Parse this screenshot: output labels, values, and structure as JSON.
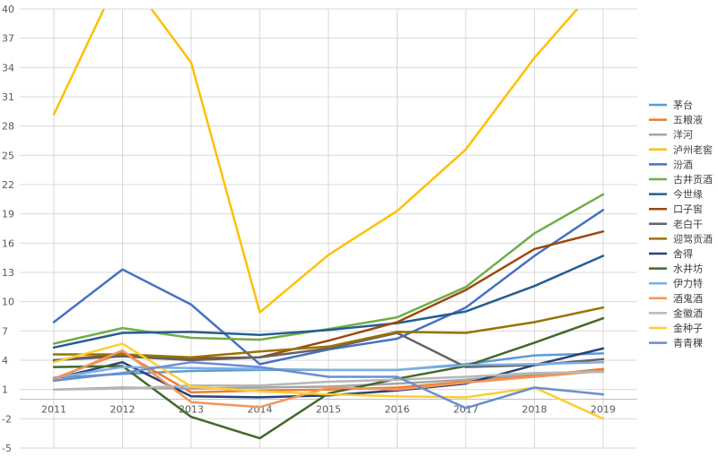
{
  "chart_data": {
    "type": "line",
    "title": "",
    "xlabel": "",
    "ylabel": "",
    "ylim": [
      -5,
      40
    ],
    "grid": "on",
    "legend_position": "right",
    "y_ticks": [
      "-5",
      "-2",
      "1",
      "4",
      "7",
      "10",
      "13",
      "16",
      "19",
      "22",
      "25",
      "28",
      "31",
      "34",
      "37",
      "40"
    ],
    "y_tick_values": [
      -5,
      -2,
      1,
      4,
      7,
      10,
      13,
      16,
      19,
      22,
      25,
      28,
      31,
      34,
      37,
      40
    ],
    "categories": [
      "2011",
      "2012",
      "2013",
      "2014",
      "2015",
      "2016",
      "2017",
      "2018",
      "2019"
    ],
    "series": [
      {
        "name": "茅台",
        "color": "#5b9bd5",
        "values": [
          2.2,
          2.6,
          2.9,
          3.0,
          3.0,
          3.0,
          3.6,
          4.5,
          4.7
        ]
      },
      {
        "name": "五粮液",
        "color": "#ed7d31",
        "values": [
          2.1,
          4.8,
          0.7,
          0.9,
          1.0,
          1.2,
          1.8,
          2.4,
          3.1
        ]
      },
      {
        "name": "洋河",
        "color": "#a5a5a5",
        "values": [
          1.0,
          1.2,
          1.1,
          1.2,
          1.3,
          1.6,
          2.0,
          2.6,
          2.9
        ]
      },
      {
        "name": "泸州老窖",
        "color": "#ffc000",
        "values": [
          29.2,
          44.0,
          34.5,
          8.9,
          14.8,
          19.3,
          25.6,
          35.0,
          43.0
        ]
      },
      {
        "name": "汾酒",
        "color": "#4472c4",
        "values": [
          7.9,
          13.3,
          9.7,
          3.6,
          5.1,
          6.2,
          9.4,
          14.7,
          19.4
        ]
      },
      {
        "name": "古井贡酒",
        "color": "#70ad47",
        "values": [
          5.7,
          7.3,
          6.3,
          6.1,
          7.2,
          8.4,
          11.5,
          17.0,
          21.0
        ]
      },
      {
        "name": "今世缘",
        "color": "#255e91",
        "values": [
          5.3,
          6.8,
          6.9,
          6.6,
          7.1,
          7.8,
          9.0,
          11.6,
          14.7
        ]
      },
      {
        "name": "口子窖",
        "color": "#9e480e",
        "values": [
          4.0,
          4.6,
          4.2,
          4.3,
          6.0,
          7.9,
          11.2,
          15.4,
          17.2
        ]
      },
      {
        "name": "老白干",
        "color": "#636363",
        "values": [
          4.0,
          4.4,
          4.0,
          4.3,
          5.2,
          6.8,
          3.3,
          3.5,
          4.1
        ]
      },
      {
        "name": "迎驾贡酒",
        "color": "#997300",
        "values": [
          4.6,
          4.6,
          4.3,
          4.9,
          5.4,
          6.9,
          6.8,
          7.9,
          9.4
        ]
      },
      {
        "name": "舍得",
        "color": "#264478",
        "values": [
          2.1,
          3.8,
          0.3,
          0.2,
          0.4,
          0.9,
          1.6,
          3.5,
          5.2
        ]
      },
      {
        "name": "水井坊",
        "color": "#43682b",
        "values": [
          3.3,
          3.4,
          -1.8,
          -4.0,
          0.6,
          2.1,
          3.4,
          5.8,
          8.3
        ]
      },
      {
        "name": "伊力特",
        "color": "#7cafdd",
        "values": [
          2.2,
          3.3,
          3.2,
          3.1,
          3.0,
          3.0,
          3.5,
          3.6,
          3.8
        ]
      },
      {
        "name": "酒鬼酒",
        "color": "#f1975a",
        "values": [
          2.0,
          5.0,
          -0.3,
          -0.8,
          1.2,
          1.0,
          1.7,
          2.3,
          2.9
        ]
      },
      {
        "name": "金徽酒",
        "color": "#b7b7b7",
        "values": [
          1.0,
          1.1,
          1.4,
          1.4,
          1.8,
          2.0,
          2.3,
          2.7,
          2.8
        ]
      },
      {
        "name": "金种子",
        "color": "#ffcd33",
        "values": [
          3.8,
          5.7,
          1.3,
          0.8,
          0.5,
          0.3,
          0.2,
          1.2,
          -2.0
        ]
      },
      {
        "name": "青青稞",
        "color": "#698ed0",
        "values": [
          1.9,
          2.7,
          3.8,
          3.3,
          2.3,
          2.3,
          -0.9,
          1.2,
          0.5
        ]
      }
    ]
  }
}
